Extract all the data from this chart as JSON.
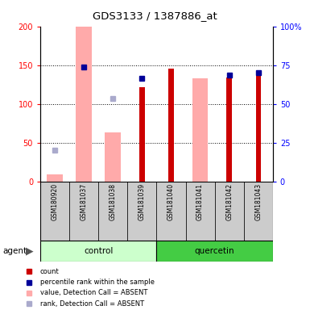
{
  "title": "GDS3133 / 1387886_at",
  "samples": [
    "GSM180920",
    "GSM181037",
    "GSM181038",
    "GSM181039",
    "GSM181040",
    "GSM181041",
    "GSM181042",
    "GSM181043"
  ],
  "count_values": [
    null,
    null,
    null,
    122,
    145,
    null,
    134,
    138
  ],
  "percentile_rank_values": [
    null,
    148,
    null,
    133,
    null,
    null,
    137,
    140
  ],
  "absent_value_values": [
    9,
    200,
    63,
    null,
    null,
    133,
    null,
    null
  ],
  "absent_rank_values": [
    40,
    null,
    107,
    null,
    null,
    null,
    null,
    null
  ],
  "y_left_ticks": [
    0,
    50,
    100,
    150,
    200
  ],
  "y_right_ticks": [
    0,
    25,
    50,
    75,
    100
  ],
  "y_right_labels": [
    "0",
    "25",
    "50",
    "75",
    "100%"
  ],
  "count_color": "#cc0000",
  "percentile_color": "#000099",
  "absent_value_color": "#ffaaaa",
  "absent_rank_color": "#aaaacc",
  "control_bg": "#ccffcc",
  "quercetin_bg": "#44cc44",
  "sample_bg": "#cccccc",
  "control_group_label": "control",
  "quercetin_group_label": "quercetin",
  "agent_label": "agent",
  "legend_items": [
    {
      "color": "#cc0000",
      "label": "count"
    },
    {
      "color": "#000099",
      "label": "percentile rank within the sample"
    },
    {
      "color": "#ffaaaa",
      "label": "value, Detection Call = ABSENT"
    },
    {
      "color": "#aaaacc",
      "label": "rank, Detection Call = ABSENT"
    }
  ]
}
